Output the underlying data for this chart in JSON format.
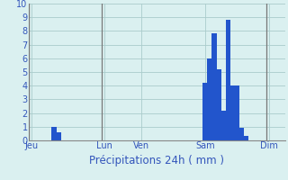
{
  "title": "Précipitations 24h ( mm )",
  "bar_color": "#2255cc",
  "background_color": "#daf0f0",
  "grid_color": "#aacccc",
  "ylim": [
    0,
    10
  ],
  "yticks": [
    0,
    1,
    2,
    3,
    4,
    5,
    6,
    7,
    8,
    9,
    10
  ],
  "n_bars": 56,
  "values": [
    0,
    0,
    0,
    0,
    0,
    1.0,
    0.6,
    0,
    0,
    0,
    0,
    0,
    0,
    0,
    0,
    0,
    0,
    0,
    0,
    0,
    0,
    0,
    0,
    0,
    0,
    0,
    0,
    0,
    0,
    0,
    0,
    0,
    0,
    0,
    0,
    0,
    0,
    0,
    4.2,
    6.0,
    7.8,
    5.2,
    2.2,
    8.8,
    4.0,
    4.0,
    0.9,
    0.3,
    0,
    0,
    0,
    0,
    0,
    0,
    0,
    0
  ],
  "xtick_positions": [
    0,
    16,
    24,
    38,
    52
  ],
  "xtick_labels": [
    "Jeu",
    "Lun",
    "Ven",
    "Sam",
    "Dim"
  ],
  "vline_positions": [
    0,
    16,
    52
  ],
  "xlabel_fontsize": 8.5,
  "tick_fontsize": 7.0,
  "xlabel_color": "#3355bb",
  "axis_color": "#888888",
  "vline_color": "#777777"
}
